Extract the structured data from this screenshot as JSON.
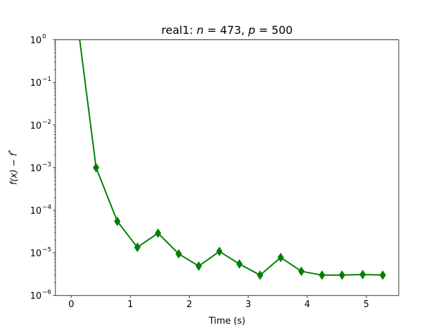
{
  "chart_data": {
    "type": "line",
    "title": "real1: n = 473, p = 500",
    "title_parts": {
      "prefix": "real1: ",
      "n": "n",
      "n_value": "473",
      "p": "p",
      "p_value": "500"
    },
    "xlabel": "Time (s)",
    "ylabel": "f(x) − f*",
    "ylabel_parts": {
      "main": "f(x) − f",
      "sup": "*"
    },
    "x_scale": "linear",
    "y_scale": "log",
    "xlim": [
      -0.27,
      5.55
    ],
    "ylim": [
      1e-06,
      1
    ],
    "xticks": [
      0,
      1,
      2,
      3,
      4,
      5
    ],
    "yticks": [
      {
        "value": 1e-06,
        "base": "10",
        "exp": "−6"
      },
      {
        "value": 1e-05,
        "base": "10",
        "exp": "−5"
      },
      {
        "value": 0.0001,
        "base": "10",
        "exp": "−4"
      },
      {
        "value": 0.001,
        "base": "10",
        "exp": "−3"
      },
      {
        "value": 0.01,
        "base": "10",
        "exp": "−2"
      },
      {
        "value": 0.1,
        "base": "10",
        "exp": "−1"
      },
      {
        "value": 1,
        "base": "10",
        "exp": "0"
      }
    ],
    "grid": false,
    "legend": "none",
    "series": [
      {
        "color": "#008000",
        "marker": "diamond",
        "x": [
          0.05,
          0.42,
          0.78,
          1.12,
          1.47,
          1.82,
          2.16,
          2.51,
          2.85,
          3.2,
          3.55,
          3.9,
          4.25,
          4.59,
          4.94,
          5.28
        ],
        "y": [
          10,
          0.001,
          5.5e-05,
          1.35e-05,
          2.9e-05,
          9.5e-06,
          4.9e-06,
          1.08e-05,
          5.5e-06,
          3e-06,
          7.8e-06,
          3.7e-06,
          3e-06,
          3e-06,
          3.1e-06,
          3e-06
        ],
        "marker_from_index": 1
      }
    ]
  }
}
